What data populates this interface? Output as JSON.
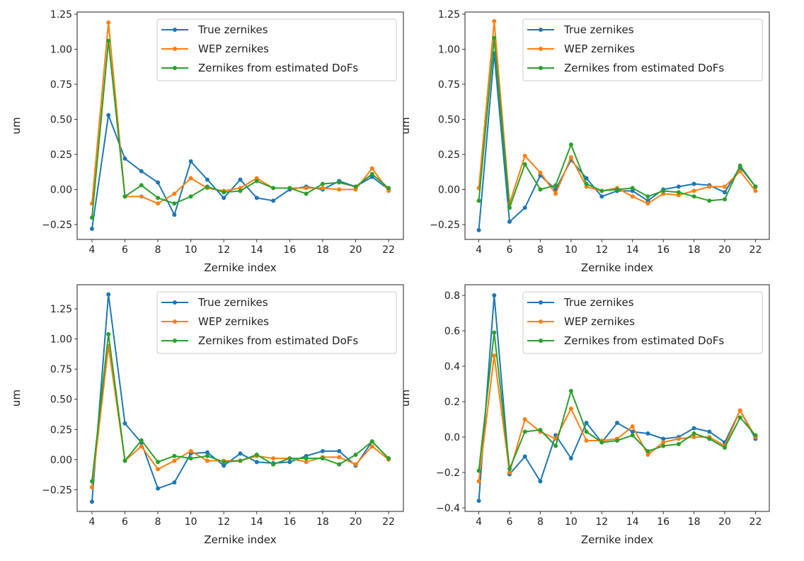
{
  "colors": {
    "true": "#1f77b4",
    "wep": "#ff7f0e",
    "dofs": "#2ca02c"
  },
  "chart_data": [
    {
      "type": "line",
      "xlabel": "Zernike index",
      "ylabel": "um",
      "xlim": [
        3.1,
        22.9
      ],
      "ylim": [
        -0.356,
        1.265
      ],
      "xticks": [
        4,
        6,
        8,
        10,
        12,
        14,
        16,
        18,
        20,
        22
      ],
      "yticks": [
        -0.25,
        0,
        0.25,
        0.5,
        0.75,
        1.0,
        1.25
      ],
      "ytick_labels": [
        "−0.25",
        "0.00",
        "0.25",
        "0.50",
        "0.75",
        "1.00",
        "1.25"
      ],
      "legend": "top-right",
      "x": [
        4,
        5,
        6,
        7,
        8,
        9,
        10,
        11,
        12,
        13,
        14,
        15,
        16,
        17,
        18,
        19,
        20,
        21,
        22
      ],
      "series": [
        {
          "name": "True zernikes",
          "values": [
            -0.28,
            0.53,
            0.22,
            0.13,
            0.05,
            -0.18,
            0.2,
            0.07,
            -0.06,
            0.07,
            -0.06,
            -0.08,
            0.0,
            0.02,
            0.0,
            0.06,
            0.02,
            0.09,
            0.0
          ]
        },
        {
          "name": "WEP zernikes",
          "values": [
            -0.1,
            1.19,
            -0.05,
            -0.05,
            -0.1,
            -0.03,
            0.08,
            0.01,
            -0.01,
            0.01,
            0.08,
            0.01,
            0.01,
            0.01,
            0.01,
            0.0,
            0.0,
            0.15,
            -0.01
          ]
        },
        {
          "name": "Zernikes from estimated DoFs",
          "values": [
            -0.2,
            1.06,
            -0.05,
            0.03,
            -0.06,
            -0.1,
            -0.05,
            0.02,
            -0.02,
            -0.01,
            0.06,
            0.01,
            0.01,
            -0.03,
            0.04,
            0.05,
            0.02,
            0.11,
            0.01
          ]
        }
      ]
    },
    {
      "type": "line",
      "xlabel": "Zernike index",
      "ylabel": "um",
      "xlim": [
        3.1,
        22.9
      ],
      "ylim": [
        -0.356,
        1.265
      ],
      "xticks": [
        4,
        6,
        8,
        10,
        12,
        14,
        16,
        18,
        20,
        22
      ],
      "yticks": [
        -0.25,
        0,
        0.25,
        0.5,
        0.75,
        1.0,
        1.25
      ],
      "ytick_labels": [
        "−0.25",
        "0.00",
        "0.25",
        "0.50",
        "0.75",
        "1.00",
        "1.25"
      ],
      "legend": "top-right",
      "x": [
        4,
        5,
        6,
        7,
        8,
        9,
        10,
        11,
        12,
        13,
        14,
        15,
        16,
        17,
        18,
        19,
        20,
        21,
        22
      ],
      "series": [
        {
          "name": "True zernikes",
          "values": [
            -0.29,
            0.97,
            -0.23,
            -0.13,
            0.1,
            0.0,
            0.21,
            0.08,
            -0.05,
            -0.01,
            -0.01,
            -0.08,
            0.0,
            0.02,
            0.04,
            0.03,
            -0.02,
            0.16,
            0.02
          ]
        },
        {
          "name": "WEP zernikes",
          "values": [
            0.01,
            1.2,
            -0.1,
            0.24,
            0.12,
            -0.03,
            0.23,
            0.02,
            -0.01,
            0.01,
            -0.05,
            -0.1,
            -0.03,
            -0.04,
            -0.01,
            0.02,
            0.02,
            0.13,
            -0.01
          ]
        },
        {
          "name": "Zernikes from estimated DoFs",
          "values": [
            -0.08,
            1.08,
            -0.13,
            0.18,
            0.0,
            0.03,
            0.32,
            0.04,
            -0.01,
            0.0,
            0.01,
            -0.05,
            -0.01,
            -0.02,
            -0.05,
            -0.08,
            -0.07,
            0.17,
            0.02
          ]
        }
      ]
    },
    {
      "type": "line",
      "xlabel": "Zernike index",
      "ylabel": "um",
      "xlim": [
        3.1,
        22.9
      ],
      "ylim": [
        -0.43,
        1.45
      ],
      "xticks": [
        4,
        6,
        8,
        10,
        12,
        14,
        16,
        18,
        20,
        22
      ],
      "yticks": [
        -0.25,
        0,
        0.25,
        0.5,
        0.75,
        1.0,
        1.25
      ],
      "ytick_labels": [
        "−0.25",
        "0.00",
        "0.25",
        "0.50",
        "0.75",
        "1.00",
        "1.25"
      ],
      "legend": "top-right",
      "x": [
        4,
        5,
        6,
        7,
        8,
        9,
        10,
        11,
        12,
        13,
        14,
        15,
        16,
        17,
        18,
        19,
        20,
        21,
        22
      ],
      "series": [
        {
          "name": "True zernikes",
          "values": [
            -0.35,
            1.37,
            0.3,
            0.14,
            -0.24,
            -0.19,
            0.05,
            0.06,
            -0.05,
            0.05,
            -0.02,
            -0.03,
            -0.02,
            0.03,
            0.07,
            0.07,
            -0.05,
            0.15,
            0.01
          ]
        },
        {
          "name": "WEP zernikes",
          "values": [
            -0.23,
            0.94,
            -0.01,
            0.11,
            -0.08,
            -0.01,
            0.07,
            -0.01,
            -0.01,
            -0.01,
            0.03,
            0.01,
            0.01,
            -0.02,
            0.02,
            0.02,
            -0.04,
            0.11,
            0.0
          ]
        },
        {
          "name": "Zernikes from estimated DoFs",
          "values": [
            -0.18,
            1.04,
            -0.01,
            0.16,
            -0.02,
            0.03,
            0.01,
            0.03,
            -0.02,
            -0.01,
            0.04,
            -0.04,
            0.01,
            0.01,
            0.01,
            -0.04,
            0.04,
            0.15,
            0.01
          ]
        }
      ]
    },
    {
      "type": "line",
      "xlabel": "Zernike index",
      "ylabel": "um",
      "xlim": [
        3.1,
        22.9
      ],
      "ylim": [
        -0.42,
        0.86
      ],
      "xticks": [
        4,
        6,
        8,
        10,
        12,
        14,
        16,
        18,
        20,
        22
      ],
      "yticks": [
        -0.4,
        -0.2,
        0,
        0.2,
        0.4,
        0.6,
        0.8
      ],
      "ytick_labels": [
        "−0.4",
        "−0.2",
        "0.0",
        "0.2",
        "0.4",
        "0.6",
        "0.8"
      ],
      "legend": "top-right",
      "x": [
        4,
        5,
        6,
        7,
        8,
        9,
        10,
        11,
        12,
        13,
        14,
        15,
        16,
        17,
        18,
        19,
        20,
        21,
        22
      ],
      "series": [
        {
          "name": "True zernikes",
          "values": [
            -0.36,
            0.8,
            -0.21,
            -0.11,
            -0.25,
            0.01,
            -0.12,
            0.08,
            -0.03,
            0.08,
            0.03,
            0.02,
            -0.01,
            0.0,
            0.05,
            0.03,
            -0.03,
            0.15,
            -0.01
          ]
        },
        {
          "name": "WEP zernikes",
          "values": [
            -0.25,
            0.46,
            -0.2,
            0.1,
            0.03,
            -0.01,
            0.16,
            -0.02,
            -0.02,
            -0.01,
            0.06,
            -0.1,
            -0.03,
            -0.01,
            0.0,
            0.0,
            -0.05,
            0.15,
            0.0
          ]
        },
        {
          "name": "Zernikes from estimated DoFs",
          "values": [
            -0.19,
            0.59,
            -0.18,
            0.03,
            0.04,
            -0.05,
            0.26,
            0.03,
            -0.03,
            -0.02,
            0.01,
            -0.08,
            -0.05,
            -0.04,
            0.02,
            -0.01,
            -0.06,
            0.11,
            0.01
          ]
        }
      ]
    }
  ]
}
